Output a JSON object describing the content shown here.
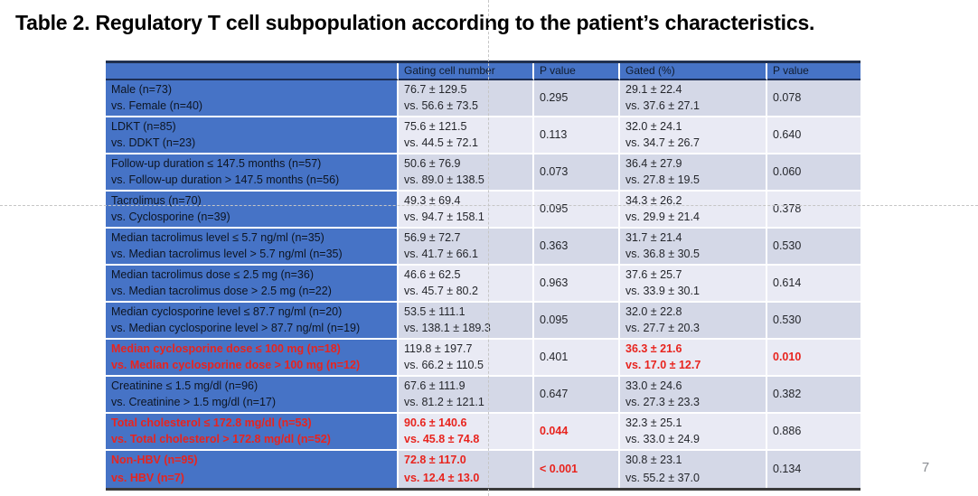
{
  "slide": {
    "title": "Table 2. Regulatory T cell subpopulation according to the patient’s characteristics.",
    "page_number": "7"
  },
  "colors": {
    "accent_blue": "#4673C6",
    "band_dark": "#D4D8E7",
    "band_light": "#E9EAF4",
    "highlight_red": "#E8241E",
    "table_top_border": "#20304E",
    "table_bottom_border": "#3A3A3A",
    "guide_line": "#C6C6C6",
    "page_number_gray": "#8A8D92"
  },
  "table": {
    "headers": [
      "",
      "Gating cell number",
      "P value",
      "Gated (%)",
      "P value"
    ],
    "rows": [
      {
        "label1": "Male (n=73)",
        "label2": "vs. Female (n=40)",
        "gating1": "76.7 ± 129.5",
        "gating2": "vs. 56.6 ± 73.5",
        "p1": "0.295",
        "gated1": "29.1 ± 22.4",
        "gated2": "vs. 37.6 ± 27.1",
        "p2": "0.078",
        "highlight": {
          "label": false,
          "gating": false,
          "p1": false,
          "gated": false,
          "p2": false
        }
      },
      {
        "label1": "LDKT (n=85)",
        "label2": "vs. DDKT (n=23)",
        "gating1": "75.6 ± 121.5",
        "gating2": "vs. 44.5 ± 72.1",
        "p1": "0.113",
        "gated1": "32.0 ± 24.1",
        "gated2": "vs. 34.7 ± 26.7",
        "p2": "0.640",
        "highlight": {
          "label": false,
          "gating": false,
          "p1": false,
          "gated": false,
          "p2": false
        }
      },
      {
        "label1": "Follow-up duration ≤ 147.5 months (n=57)",
        "label2": "vs. Follow-up duration > 147.5 months (n=56)",
        "gating1": "50.6 ± 76.9",
        "gating2": "vs. 89.0 ± 138.5",
        "p1": "0.073",
        "gated1": "36.4 ± 27.9",
        "gated2": "vs. 27.8 ± 19.5",
        "p2": "0.060",
        "highlight": {
          "label": false,
          "gating": false,
          "p1": false,
          "gated": false,
          "p2": false
        }
      },
      {
        "label1": "Tacrolimus (n=70)",
        "label2": "vs. Cyclosporine (n=39)",
        "gating1": "49.3 ± 69.4",
        "gating2": "vs. 94.7 ± 158.1",
        "p1": "0.095",
        "gated1": "34.3 ± 26.2",
        "gated2": "vs. 29.9 ± 21.4",
        "p2": "0.378",
        "highlight": {
          "label": false,
          "gating": false,
          "p1": false,
          "gated": false,
          "p2": false
        }
      },
      {
        "label1": "Median tacrolimus level ≤ 5.7 ng/ml (n=35)",
        "label2": "vs. Median tacrolimus level > 5.7 ng/ml (n=35)",
        "gating1": "56.9 ± 72.7",
        "gating2": "vs. 41.7 ± 66.1",
        "p1": "0.363",
        "gated1": "31.7 ± 21.4",
        "gated2": "vs. 36.8 ± 30.5",
        "p2": "0.530",
        "highlight": {
          "label": false,
          "gating": false,
          "p1": false,
          "gated": false,
          "p2": false
        }
      },
      {
        "label1": "Median tacrolimus dose ≤ 2.5 mg (n=36)",
        "label2": "vs. Median tacrolimus dose > 2.5 mg (n=22)",
        "gating1": "46.6 ± 62.5",
        "gating2": "vs. 45.7 ± 80.2",
        "p1": "0.963",
        "gated1": "37.6 ± 25.7",
        "gated2": "vs. 33.9 ± 30.1",
        "p2": "0.614",
        "highlight": {
          "label": false,
          "gating": false,
          "p1": false,
          "gated": false,
          "p2": false
        }
      },
      {
        "label1": "Median cyclosporine level ≤ 87.7 ng/ml (n=20)",
        "label2": "vs. Median cyclosporine level > 87.7 ng/ml (n=19)",
        "gating1": "53.5 ± 111.1",
        "gating2": "vs. 138.1 ± 189.3",
        "p1": "0.095",
        "gated1": "32.0 ± 22.8",
        "gated2": "vs. 27.7 ± 20.3",
        "p2": "0.530",
        "highlight": {
          "label": false,
          "gating": false,
          "p1": false,
          "gated": false,
          "p2": false
        }
      },
      {
        "label1": "Median cyclosporine dose ≤ 100 mg (n=18)",
        "label2": "vs. Median cyclosporine dose > 100 mg (n=12)",
        "gating1": "119.8 ± 197.7",
        "gating2": "vs. 66.2 ± 110.5",
        "p1": "0.401",
        "gated1": "36.3 ± 21.6",
        "gated2": "vs. 17.0 ± 12.7",
        "p2": "0.010",
        "highlight": {
          "label": true,
          "gating": false,
          "p1": false,
          "gated": true,
          "p2": true
        }
      },
      {
        "label1": "Creatinine ≤ 1.5 mg/dl (n=96)",
        "label2": "vs. Creatinine > 1.5 mg/dl (n=17)",
        "gating1": "67.6 ± 111.9",
        "gating2": "vs. 81.2 ± 121.1",
        "p1": "0.647",
        "gated1": "33.0 ± 24.6",
        "gated2": "vs. 27.3 ± 23.3",
        "p2": "0.382",
        "highlight": {
          "label": false,
          "gating": false,
          "p1": false,
          "gated": false,
          "p2": false
        }
      },
      {
        "label1": "Total cholesterol ≤ 172.8 mg/dl (n=53)",
        "label2": "vs. Total cholesterol > 172.8 mg/dl (n=52)",
        "gating1": "90.6 ± 140.6",
        "gating2": "vs. 45.8 ± 74.8",
        "p1": "0.044",
        "gated1": "32.3 ± 25.1",
        "gated2": "vs. 33.0 ± 24.9",
        "p2": "0.886",
        "highlight": {
          "label": true,
          "gating": true,
          "p1": true,
          "gated": false,
          "p2": false
        }
      },
      {
        "label1": "Non-HBV (n=95)",
        "label2": "vs. HBV (n=7)",
        "gating1": "72.8 ± 117.0",
        "gating2": "vs. 12.4 ± 13.0",
        "p1": "< 0.001",
        "gated1": "30.8 ± 23.1",
        "gated2": "vs. 55.2 ± 37.0",
        "p2": "0.134",
        "highlight": {
          "label": true,
          "gating": true,
          "p1": true,
          "gated": false,
          "p2": false
        }
      }
    ]
  }
}
